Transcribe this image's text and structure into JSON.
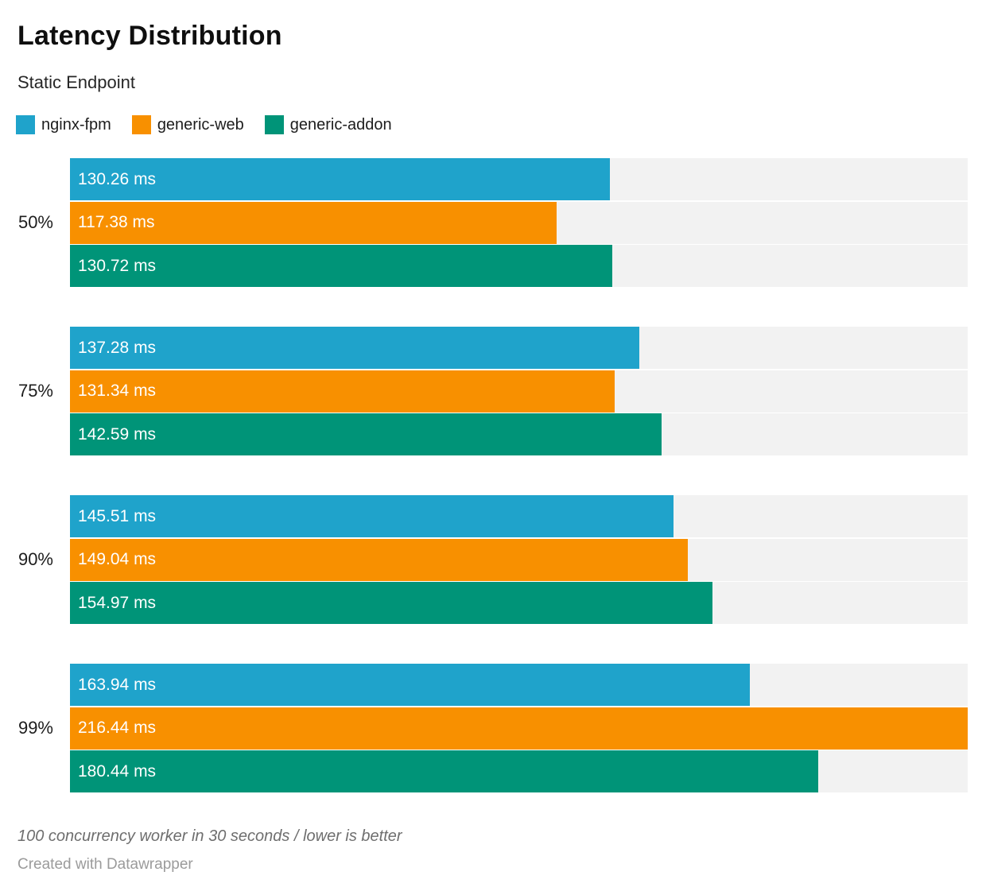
{
  "header": {
    "title": "Latency Distribution",
    "subtitle": "Static Endpoint"
  },
  "legend": [
    {
      "label": "nginx-fpm",
      "color": "#1fa3cb"
    },
    {
      "label": "generic-web",
      "color": "#f89000"
    },
    {
      "label": "generic-addon",
      "color": "#009478"
    }
  ],
  "chart_data": {
    "type": "bar",
    "orientation": "horizontal",
    "title": "Latency Distribution",
    "subtitle": "Static Endpoint",
    "categories": [
      "50%",
      "75%",
      "90%",
      "99%"
    ],
    "series": [
      {
        "name": "nginx-fpm",
        "color": "#1fa3cb",
        "values": [
          130.26,
          137.28,
          145.51,
          163.94
        ]
      },
      {
        "name": "generic-web",
        "color": "#f89000",
        "values": [
          117.38,
          131.34,
          149.04,
          216.44
        ]
      },
      {
        "name": "generic-addon",
        "color": "#009478",
        "values": [
          130.72,
          142.59,
          154.97,
          180.44
        ]
      }
    ],
    "value_suffix": " ms",
    "value_decimals": 2,
    "xlim": [
      0,
      216.44
    ],
    "grid": false,
    "legend_position": "top",
    "track_color": "#f2f2f2",
    "value_label_color": "#ffffff"
  },
  "footer": {
    "note": "100 concurrency worker in 30 seconds / lower is better",
    "attribution": "Created with Datawrapper"
  }
}
